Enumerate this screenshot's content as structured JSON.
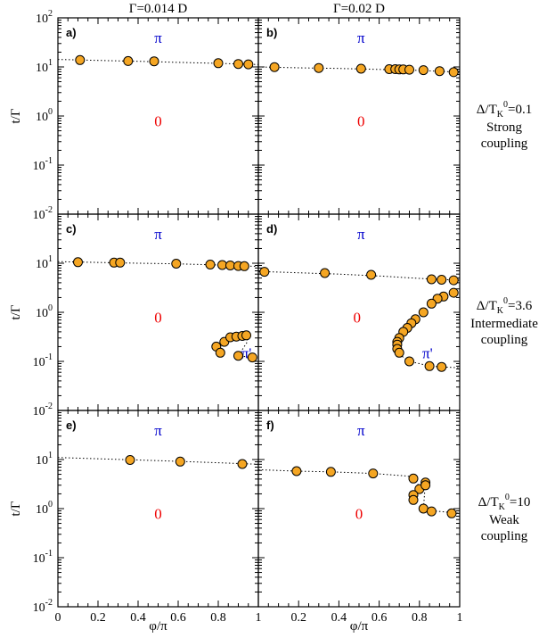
{
  "colors": {
    "marker_fill": "#f5a623",
    "marker_edge": "#000000",
    "pi_label": "#0000cc",
    "zero_label": "#ee0000"
  },
  "column_titles": [
    "Γ=0.014 D",
    "Γ=0.02 D"
  ],
  "y_axis_label": "t/Γ",
  "x_axis_label": "φ/π",
  "x_ticks": [
    "0",
    "0.2",
    "0.4",
    "0.6",
    "0.8",
    "1"
  ],
  "row_labels": [
    {
      "ratio": "Δ/T",
      "sub": "K",
      "sup": "0",
      "value": "=0.1",
      "line1": "Strong",
      "line2": "coupling"
    },
    {
      "ratio": "Δ/T",
      "sub": "K",
      "sup": "0",
      "value": "=3.6",
      "line1": "Intermediate",
      "line2": "coupling"
    },
    {
      "ratio": "Δ/T",
      "sub": "K",
      "sup": "0",
      "value": "=10",
      "line1": "Weak",
      "line2": "coupling"
    }
  ],
  "chart_data": {
    "type": "scatter",
    "xlabel": "φ/π",
    "ylabel": "t/Γ",
    "xlim": [
      0,
      1
    ],
    "ylim": [
      0.01,
      100
    ],
    "yscale": "log",
    "y_ticks": [
      {
        "value": 0.01,
        "base": "10",
        "exp": "-2"
      },
      {
        "value": 0.1,
        "base": "10",
        "exp": "-1"
      },
      {
        "value": 1,
        "base": "10",
        "exp": "0"
      },
      {
        "value": 10,
        "base": "10",
        "exp": "1"
      },
      {
        "value": 100,
        "base": "10",
        "exp": "2"
      }
    ],
    "panels": [
      {
        "label": "a)",
        "row": 0,
        "col": 0,
        "regions": [
          {
            "text": "π",
            "kind": "pi",
            "x": 0.5,
            "y": 40
          },
          {
            "text": "0",
            "kind": "zero",
            "x": 0.5,
            "y": 0.8
          }
        ],
        "line": [
          [
            0.0,
            14.2
          ],
          [
            0.2,
            13.6
          ],
          [
            0.4,
            13.0
          ],
          [
            0.6,
            12.4
          ],
          [
            0.8,
            11.8
          ],
          [
            1.0,
            11.2
          ]
        ],
        "points": [
          [
            0.11,
            13.8
          ],
          [
            0.35,
            13.2
          ],
          [
            0.48,
            13.0
          ],
          [
            0.8,
            11.9
          ],
          [
            0.9,
            11.5
          ],
          [
            0.95,
            11.3
          ]
        ]
      },
      {
        "label": "b)",
        "row": 0,
        "col": 1,
        "regions": [
          {
            "text": "π",
            "kind": "pi",
            "x": 0.51,
            "y": 40
          },
          {
            "text": "0",
            "kind": "zero",
            "x": 0.51,
            "y": 0.8
          }
        ],
        "line": [
          [
            0.0,
            10.0
          ],
          [
            0.2,
            9.6
          ],
          [
            0.4,
            9.3
          ],
          [
            0.6,
            8.9
          ],
          [
            0.8,
            8.5
          ],
          [
            1.0,
            7.8
          ]
        ],
        "points": [
          [
            0.08,
            9.9
          ],
          [
            0.3,
            9.5
          ],
          [
            0.51,
            9.2
          ],
          [
            0.65,
            9.0
          ],
          [
            0.68,
            9.0
          ],
          [
            0.7,
            8.9
          ],
          [
            0.72,
            8.9
          ],
          [
            0.75,
            8.8
          ],
          [
            0.82,
            8.6
          ],
          [
            0.9,
            8.2
          ],
          [
            0.97,
            7.8
          ]
        ]
      },
      {
        "label": "c)",
        "row": 1,
        "col": 0,
        "regions": [
          {
            "text": "π",
            "kind": "pi",
            "x": 0.5,
            "y": 40
          },
          {
            "text": "0",
            "kind": "zero",
            "x": 0.5,
            "y": 0.8
          },
          {
            "text": "π'",
            "kind": "pi",
            "x": 0.94,
            "y": 0.15
          }
        ],
        "line": [
          [
            0.0,
            10.8
          ],
          [
            0.2,
            10.4
          ],
          [
            0.4,
            10.0
          ],
          [
            0.6,
            9.7
          ],
          [
            0.8,
            9.2
          ],
          [
            1.0,
            8.6
          ]
        ],
        "points": [
          [
            0.1,
            10.5
          ],
          [
            0.28,
            10.3
          ],
          [
            0.31,
            10.3
          ],
          [
            0.59,
            9.8
          ],
          [
            0.76,
            9.4
          ],
          [
            0.82,
            9.2
          ],
          [
            0.86,
            9.0
          ],
          [
            0.9,
            8.8
          ],
          [
            0.93,
            8.7
          ]
        ],
        "branch_line": [
          [
            0.79,
            0.2
          ],
          [
            0.81,
            0.15
          ],
          [
            0.83,
            0.25
          ],
          [
            0.86,
            0.31
          ],
          [
            0.89,
            0.32
          ],
          [
            0.92,
            0.33
          ],
          [
            0.94,
            0.34
          ],
          [
            0.945,
            0.25
          ],
          [
            0.9,
            0.13
          ],
          [
            0.97,
            0.12
          ]
        ],
        "branch_points": [
          [
            0.79,
            0.2
          ],
          [
            0.81,
            0.15
          ],
          [
            0.83,
            0.25
          ],
          [
            0.86,
            0.31
          ],
          [
            0.89,
            0.32
          ],
          [
            0.92,
            0.33
          ],
          [
            0.94,
            0.34
          ],
          [
            0.9,
            0.13
          ],
          [
            0.97,
            0.12
          ]
        ]
      },
      {
        "label": "d)",
        "row": 1,
        "col": 1,
        "regions": [
          {
            "text": "π",
            "kind": "pi",
            "x": 0.51,
            "y": 40
          },
          {
            "text": "0",
            "kind": "zero",
            "x": 0.49,
            "y": 0.8
          },
          {
            "text": "π'",
            "kind": "pi",
            "x": 0.84,
            "y": 0.15
          }
        ],
        "line": [
          [
            0.0,
            6.8
          ],
          [
            0.2,
            6.4
          ],
          [
            0.4,
            6.0
          ],
          [
            0.6,
            5.5
          ],
          [
            0.8,
            4.9
          ],
          [
            1.0,
            4.5
          ]
        ],
        "points": [
          [
            0.03,
            6.7
          ],
          [
            0.33,
            6.3
          ],
          [
            0.56,
            5.8
          ],
          [
            0.86,
            4.7
          ],
          [
            0.91,
            4.6
          ],
          [
            0.97,
            4.5
          ]
        ],
        "branch_line": [
          [
            0.97,
            2.5
          ],
          [
            0.96,
            2.4
          ],
          [
            0.92,
            2.1
          ],
          [
            0.89,
            1.9
          ],
          [
            0.86,
            1.5
          ],
          [
            0.82,
            1.0
          ],
          [
            0.78,
            0.72
          ],
          [
            0.76,
            0.6
          ],
          [
            0.74,
            0.48
          ],
          [
            0.72,
            0.4
          ],
          [
            0.7,
            0.3
          ],
          [
            0.69,
            0.25
          ],
          [
            0.69,
            0.22
          ],
          [
            0.69,
            0.18
          ],
          [
            0.7,
            0.15
          ],
          [
            0.72,
            0.12
          ],
          [
            0.75,
            0.1
          ],
          [
            0.8,
            0.09
          ],
          [
            0.85,
            0.08
          ],
          [
            0.91,
            0.077
          ],
          [
            1.0,
            0.074
          ]
        ],
        "branch_points": [
          [
            0.97,
            2.5
          ],
          [
            0.92,
            2.1
          ],
          [
            0.89,
            1.9
          ],
          [
            0.86,
            1.5
          ],
          [
            0.82,
            1.0
          ],
          [
            0.78,
            0.72
          ],
          [
            0.76,
            0.6
          ],
          [
            0.74,
            0.48
          ],
          [
            0.72,
            0.4
          ],
          [
            0.7,
            0.3
          ],
          [
            0.69,
            0.25
          ],
          [
            0.69,
            0.22
          ],
          [
            0.69,
            0.18
          ],
          [
            0.7,
            0.15
          ],
          [
            0.75,
            0.1
          ],
          [
            0.85,
            0.08
          ],
          [
            0.91,
            0.077
          ]
        ]
      },
      {
        "label": "e)",
        "row": 2,
        "col": 0,
        "regions": [
          {
            "text": "π",
            "kind": "pi",
            "x": 0.5,
            "y": 40
          },
          {
            "text": "0",
            "kind": "zero",
            "x": 0.5,
            "y": 0.8
          }
        ],
        "line": [
          [
            0.0,
            11.0
          ],
          [
            0.2,
            10.4
          ],
          [
            0.4,
            9.8
          ],
          [
            0.6,
            9.2
          ],
          [
            0.8,
            8.6
          ],
          [
            1.0,
            8.0
          ]
        ],
        "points": [
          [
            0.36,
            9.8
          ],
          [
            0.61,
            9.1
          ],
          [
            0.92,
            8.1
          ]
        ]
      },
      {
        "label": "f)",
        "row": 2,
        "col": 1,
        "regions": [
          {
            "text": "π",
            "kind": "pi",
            "x": 0.51,
            "y": 40
          },
          {
            "text": "0",
            "kind": "zero",
            "x": 0.5,
            "y": 0.8
          }
        ],
        "line": [
          [
            0.0,
            6.2
          ],
          [
            0.19,
            5.8
          ],
          [
            0.36,
            5.6
          ],
          [
            0.57,
            5.2
          ],
          [
            0.74,
            4.6
          ],
          [
            0.78,
            4.2
          ],
          [
            0.8,
            2.6
          ],
          [
            0.83,
            3.6
          ],
          [
            0.82,
            1.0
          ],
          [
            0.87,
            0.9
          ],
          [
            1.0,
            0.8
          ]
        ],
        "points": [
          [
            0.19,
            5.8
          ],
          [
            0.36,
            5.6
          ],
          [
            0.57,
            5.2
          ],
          [
            0.77,
            4.1
          ],
          [
            0.8,
            2.5
          ],
          [
            0.83,
            3.4
          ],
          [
            0.83,
            3.0
          ],
          [
            0.77,
            1.9
          ],
          [
            0.77,
            1.5
          ],
          [
            0.82,
            1.0
          ],
          [
            0.86,
            0.88
          ],
          [
            0.96,
            0.8
          ]
        ]
      }
    ]
  }
}
